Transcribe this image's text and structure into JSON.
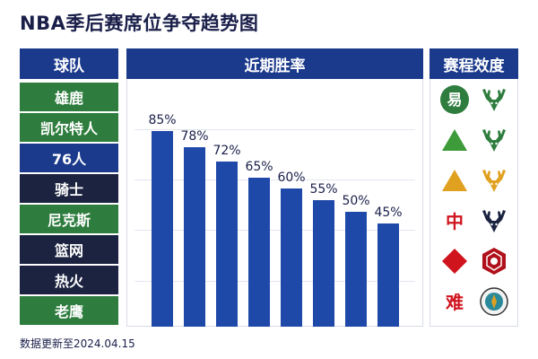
{
  "title": "NBA季后赛席位争夺趋势图",
  "headers": {
    "team": "球队",
    "chart": "近期胜率",
    "difficulty": "赛程效度"
  },
  "teams": [
    {
      "name": "雄鹿",
      "color": "#2e7d3e"
    },
    {
      "name": "凯尔特人",
      "color": "#2e7d3e"
    },
    {
      "name": "76人",
      "color": "#1b3a8c"
    },
    {
      "name": "骑士",
      "color": "#1c2340"
    },
    {
      "name": "尼克斯",
      "color": "#2e7d3e"
    },
    {
      "name": "篮网",
      "color": "#1c2340"
    },
    {
      "name": "热火",
      "color": "#1c2340"
    },
    {
      "name": "老鹰",
      "color": "#2e7d3e"
    }
  ],
  "chart_data": {
    "type": "bar",
    "title": "近期胜率",
    "values": [
      85,
      78,
      72,
      65,
      60,
      55,
      50,
      45
    ],
    "labels": [
      "85%",
      "78%",
      "72%",
      "65%",
      "60%",
      "55%",
      "50%",
      "45%"
    ],
    "ylim": [
      0,
      100
    ],
    "grid": true,
    "bar_color": "#1f49a8"
  },
  "difficulty": [
    {
      "type": "circle",
      "text": "易",
      "color": "#2e7d3e",
      "logo": "deer-icon",
      "logo_color": "#2e7d3e"
    },
    {
      "type": "triangle",
      "text": "",
      "color": "#3d9b3a",
      "logo": "deer-icon",
      "logo_color": "#2e7d3e"
    },
    {
      "type": "triangle",
      "text": "",
      "color": "#e0a020",
      "logo": "deer-icon",
      "logo_color": "#e0a020"
    },
    {
      "type": "text",
      "text": "中",
      "color": "#d0141e",
      "logo": "deer-icon",
      "logo_color": "#1c2340"
    },
    {
      "type": "diamond",
      "text": "",
      "color": "#d0141e",
      "logo": "badge-icon",
      "logo_color": "#b0101a"
    },
    {
      "type": "text",
      "text": "难",
      "color": "#d0141e",
      "logo": "seal-icon",
      "logo_color": "#2a8a9a"
    }
  ],
  "footer": "数据更新至2024.04.15"
}
